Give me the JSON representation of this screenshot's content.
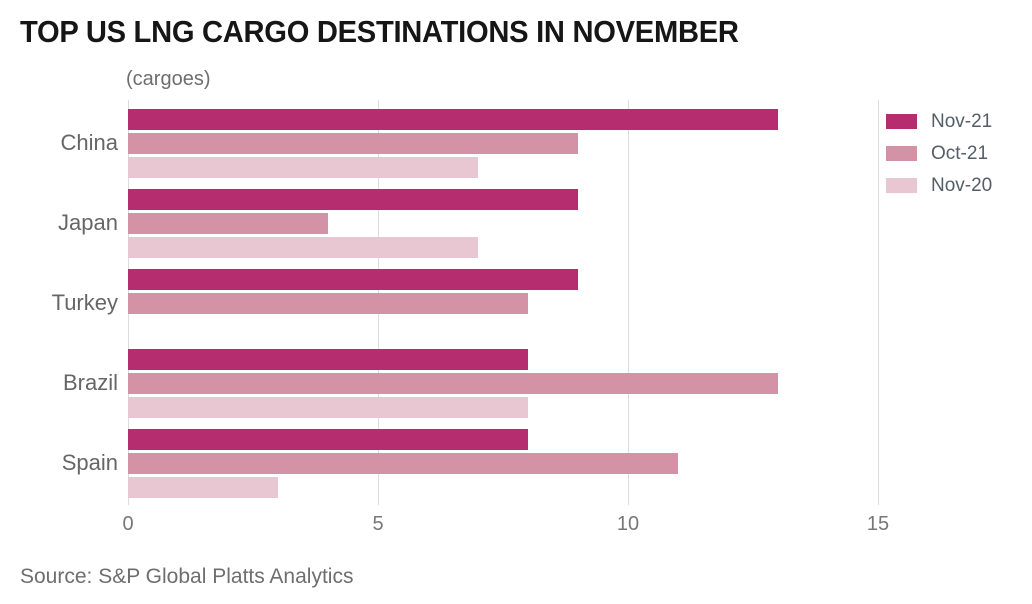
{
  "title": "TOP US LNG CARGO DESTINATIONS IN NOVEMBER",
  "subtitle": "(cargoes)",
  "source": "Source: S&P Global Platts Analytics",
  "colors": {
    "series_nov21": "#b52d6f",
    "series_oct21": "#d392a6",
    "series_nov20": "#e8c7d2",
    "gridline": "#dcdcdc",
    "title_text": "#161616",
    "muted_text": "#6e6e6e",
    "axis_tick_text": "#777777",
    "legend_text": "#545e68"
  },
  "chart_data": {
    "type": "bar",
    "orientation": "horizontal",
    "title": "TOP US LNG CARGO DESTINATIONS IN NOVEMBER",
    "unit_label": "(cargoes)",
    "categories": [
      "China",
      "Japan",
      "Turkey",
      "Brazil",
      "Spain"
    ],
    "series": [
      {
        "name": "Nov-21",
        "color": "#b52d6f",
        "values": [
          13,
          9,
          9,
          8,
          8
        ]
      },
      {
        "name": "Oct-21",
        "color": "#d392a6",
        "values": [
          9,
          4,
          8,
          13,
          11
        ]
      },
      {
        "name": "Nov-20",
        "color": "#e8c7d2",
        "values": [
          7,
          7,
          null,
          8,
          3
        ]
      }
    ],
    "x_ticks": [
      0,
      5,
      10,
      15
    ],
    "xlim": [
      0,
      17.6
    ],
    "grid": "vertical",
    "legend_position": "top-right",
    "source": "Source: S&P Global Platts Analytics"
  }
}
